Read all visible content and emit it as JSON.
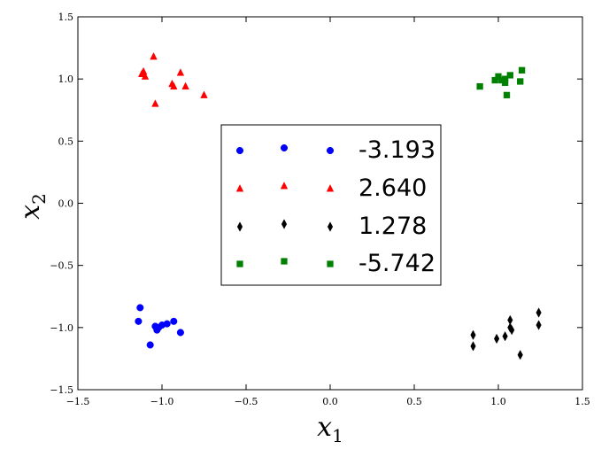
{
  "chart_data": {
    "type": "scatter",
    "xlabel": "x",
    "xlabel_sub": "1",
    "ylabel": "x",
    "ylabel_sub": "2",
    "xlim": [
      -1.5,
      1.5
    ],
    "ylim": [
      -1.5,
      1.5
    ],
    "xticks": [
      -1.5,
      -1.0,
      -0.5,
      0.0,
      0.5,
      1.0,
      1.5
    ],
    "yticks": [
      -1.5,
      -1.0,
      -0.5,
      0.0,
      0.5,
      1.0,
      1.5
    ],
    "xtick_labels": [
      "−1.5",
      "−1.0",
      "−0.5",
      "0.0",
      "0.5",
      "1.0",
      "1.5"
    ],
    "ytick_labels": [
      "−1.5",
      "−1.0",
      "−0.5",
      "0.0",
      "0.5",
      "1.0",
      "1.5"
    ],
    "grid": false,
    "legend_placement": "center",
    "series": [
      {
        "name": "-3.193",
        "marker": "circle",
        "color": "#0000ff",
        "points": [
          [
            -1.13,
            -0.84
          ],
          [
            -1.14,
            -0.95
          ],
          [
            -1.04,
            -0.99
          ],
          [
            -1.03,
            -1.02
          ],
          [
            -1.02,
            -1.0
          ],
          [
            -1.0,
            -0.98
          ],
          [
            -0.97,
            -0.97
          ],
          [
            -0.93,
            -0.95
          ],
          [
            -0.89,
            -1.04
          ],
          [
            -1.07,
            -1.14
          ]
        ]
      },
      {
        "name": "2.640",
        "marker": "triangle",
        "color": "#ff0000",
        "points": [
          [
            -1.12,
            1.04
          ],
          [
            -1.11,
            1.06
          ],
          [
            -1.1,
            1.02
          ],
          [
            -1.05,
            1.18
          ],
          [
            -0.93,
            0.94
          ],
          [
            -0.94,
            0.96
          ],
          [
            -0.89,
            1.05
          ],
          [
            -0.86,
            0.94
          ],
          [
            -0.75,
            0.87
          ],
          [
            -1.04,
            0.8
          ]
        ]
      },
      {
        "name": "1.278",
        "marker": "diamond",
        "color": "#000000",
        "points": [
          [
            0.85,
            -1.06
          ],
          [
            0.85,
            -1.15
          ],
          [
            0.99,
            -1.09
          ],
          [
            1.04,
            -1.07
          ],
          [
            1.07,
            -0.94
          ],
          [
            1.07,
            -1.0
          ],
          [
            1.08,
            -1.02
          ],
          [
            1.13,
            -1.22
          ],
          [
            1.24,
            -0.88
          ],
          [
            1.24,
            -0.98
          ]
        ]
      },
      {
        "name": "-5.742",
        "marker": "square",
        "color": "#008000",
        "points": [
          [
            0.89,
            0.94
          ],
          [
            0.98,
            0.99
          ],
          [
            1.0,
            1.02
          ],
          [
            1.02,
            0.99
          ],
          [
            1.04,
            1.0
          ],
          [
            1.04,
            0.97
          ],
          [
            1.05,
            0.87
          ],
          [
            1.07,
            1.03
          ],
          [
            1.13,
            0.98
          ],
          [
            1.14,
            1.07
          ]
        ]
      }
    ]
  }
}
